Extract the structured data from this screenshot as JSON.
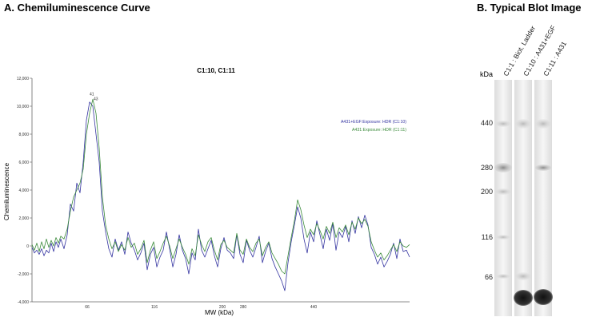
{
  "panel_a": {
    "title": "A. Chemiluminescence Curve"
  },
  "panel_b": {
    "title": "B.   Typical Blot Image",
    "unit_label": "kDa",
    "lanes": [
      "C1:1 : Biot. Ladder",
      "C1:10 : A431+EGF",
      "C1:11 : A431"
    ],
    "markers": [
      "440",
      "280",
      "200",
      "116",
      "66"
    ]
  },
  "chart_data": {
    "type": "line",
    "title": "C1:10, C1:11",
    "xlabel": "MW (kDa)",
    "ylabel": "Chemiluminescence",
    "ylim": [
      -4000,
      12000
    ],
    "y_ticks": [
      "12,000",
      "10,000",
      "8,000",
      "6,000",
      "4,000",
      "2,000",
      "0",
      "-2,000",
      "-4,000"
    ],
    "x_ticks": [
      "66",
      "116",
      "200",
      "280",
      "440"
    ],
    "peak_labels": [
      "41",
      "43"
    ],
    "legend_position": "right",
    "series": [
      {
        "name": "A431+EGF:Exposure: HDR (C1:10)",
        "color": "#3333a0",
        "x": [
          0,
          3,
          6,
          9,
          12,
          15,
          18,
          21,
          24,
          27,
          30,
          33,
          36,
          40,
          44,
          48,
          52,
          56,
          60,
          64,
          68,
          72,
          76,
          80,
          84,
          88,
          92,
          96,
          100,
          104,
          108,
          112,
          116,
          120,
          124,
          128,
          132,
          136,
          140,
          144,
          148,
          152,
          156,
          160,
          164,
          168,
          172,
          176,
          180,
          184,
          188,
          192,
          196,
          200,
          204,
          208,
          212,
          216,
          220,
          224,
          228,
          232,
          236,
          240,
          244,
          248,
          252,
          256,
          260,
          264,
          268,
          272,
          276,
          280,
          284,
          288,
          292,
          296,
          300,
          304,
          308,
          312,
          316,
          320,
          324,
          328,
          332,
          336,
          340,
          344,
          348,
          352,
          356,
          360,
          364,
          368,
          372,
          376,
          380,
          384,
          388,
          392,
          396,
          400,
          404,
          408,
          412,
          416,
          420,
          424,
          428,
          432,
          436,
          440,
          444,
          448,
          452,
          456,
          460,
          464,
          468,
          472
        ],
        "y": [
          -100,
          -500,
          -300,
          -600,
          -200,
          -700,
          -300,
          -500,
          200,
          -400,
          300,
          -100,
          500,
          -200,
          800,
          3000,
          2500,
          4500,
          3800,
          6000,
          9000,
          10300,
          10000,
          8000,
          6000,
          2500,
          1000,
          -200,
          -800,
          500,
          -300,
          300,
          -600,
          1000,
          200,
          -300,
          -1000,
          -500,
          200,
          -1700,
          -600,
          -100,
          -1500,
          -800,
          -300,
          1000,
          -200,
          -1500,
          -600,
          800,
          -300,
          -900,
          -2000,
          -500,
          -1000,
          1200,
          -300,
          -800,
          -200,
          400,
          -700,
          -1500,
          -200,
          600,
          -300,
          -500,
          -900,
          800,
          -600,
          -1200,
          400,
          -300,
          -800,
          -100,
          700,
          -1200,
          -400,
          200,
          -900,
          -1500,
          -2000,
          -2500,
          -3200,
          -1200,
          300,
          1500,
          2800,
          2000,
          500,
          -500,
          1000,
          300,
          1800,
          800,
          -200,
          1200,
          400,
          1600,
          -300,
          1000,
          600,
          1400,
          300,
          1800,
          900,
          2100,
          1300,
          2200,
          1500,
          -100,
          -600,
          -1300,
          -800,
          -1500,
          -1100,
          -600,
          200,
          -900,
          500,
          -400,
          -300,
          -800
        ]
      },
      {
        "name": "A431:Exposure: HDR (C1:11)",
        "color": "#3a8a3a",
        "x": [
          0,
          3,
          6,
          9,
          12,
          15,
          18,
          21,
          24,
          27,
          30,
          33,
          36,
          40,
          44,
          48,
          52,
          56,
          60,
          64,
          68,
          72,
          76,
          80,
          84,
          88,
          92,
          96,
          100,
          104,
          108,
          112,
          116,
          120,
          124,
          128,
          132,
          136,
          140,
          144,
          148,
          152,
          156,
          160,
          164,
          168,
          172,
          176,
          180,
          184,
          188,
          192,
          196,
          200,
          204,
          208,
          212,
          216,
          220,
          224,
          228,
          232,
          236,
          240,
          244,
          248,
          252,
          256,
          260,
          264,
          268,
          272,
          276,
          280,
          284,
          288,
          292,
          296,
          300,
          304,
          308,
          312,
          316,
          320,
          324,
          328,
          332,
          336,
          340,
          344,
          348,
          352,
          356,
          360,
          364,
          368,
          372,
          376,
          380,
          384,
          388,
          392,
          396,
          400,
          404,
          408,
          412,
          416,
          420,
          424,
          428,
          432,
          436,
          440,
          444,
          448,
          452,
          456,
          460,
          464,
          468,
          472
        ],
        "y": [
          100,
          -300,
          200,
          -400,
          300,
          -200,
          500,
          -100,
          400,
          0,
          600,
          200,
          700,
          500,
          1200,
          2500,
          3500,
          4000,
          4500,
          5500,
          8000,
          9500,
          10500,
          9500,
          7000,
          3500,
          1500,
          500,
          -200,
          300,
          -400,
          100,
          -300,
          600,
          -100,
          200,
          -600,
          -200,
          400,
          -1200,
          -300,
          300,
          -900,
          -400,
          200,
          700,
          0,
          -900,
          -200,
          500,
          -100,
          -600,
          -1300,
          -200,
          -700,
          800,
          100,
          -400,
          300,
          600,
          -300,
          -1000,
          100,
          400,
          -100,
          -300,
          -500,
          900,
          -300,
          -600,
          500,
          -100,
          -400,
          200,
          500,
          -700,
          -100,
          300,
          -500,
          -900,
          -1300,
          -1800,
          -2000,
          -700,
          600,
          1800,
          3300,
          2600,
          1500,
          600,
          1200,
          800,
          1600,
          1100,
          500,
          1400,
          900,
          1700,
          600,
          1300,
          1000,
          1500,
          800,
          1700,
          1200,
          2000,
          1600,
          1900,
          1400,
          300,
          -300,
          -800,
          -500,
          -1000,
          -700,
          -300,
          100,
          -400,
          300,
          0,
          -100,
          100
        ]
      }
    ]
  }
}
